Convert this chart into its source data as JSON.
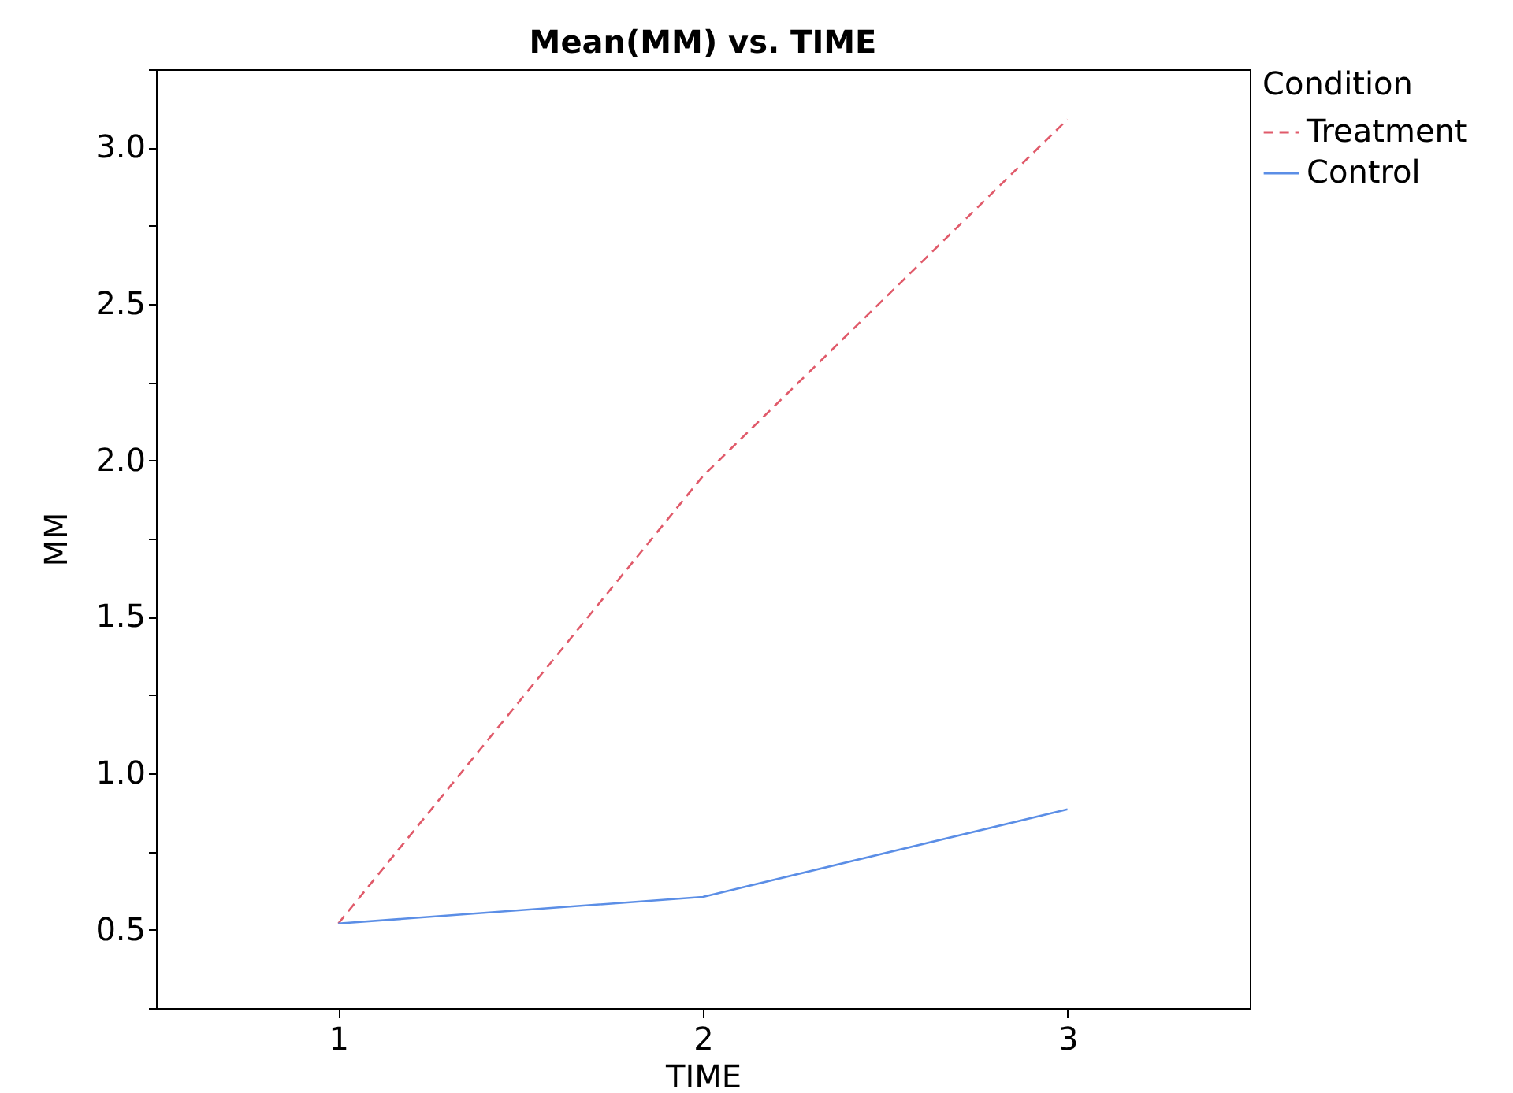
{
  "chart_data": {
    "type": "line",
    "title": "Mean(MM) vs. TIME",
    "xlabel": "TIME",
    "ylabel": "MM",
    "legend_title": "Condition",
    "legend": "top right",
    "x": [
      1,
      2,
      3
    ],
    "series": [
      {
        "name": "Treatment",
        "color": "#e05a6a",
        "line_style": "dashed",
        "values": [
          0.52,
          1.95,
          3.09
        ]
      },
      {
        "name": "Control",
        "color": "#5b8ee6",
        "line_style": "solid",
        "values": [
          0.52,
          0.605,
          0.885
        ]
      }
    ],
    "xlim": [
      0.5,
      3.5
    ],
    "xticks": [
      1,
      2,
      3
    ],
    "ylim": [
      0.25,
      3.25
    ],
    "yticks": [
      {
        "value": 0.25,
        "label": null
      },
      {
        "value": 0.5,
        "label": "0.5"
      },
      {
        "value": 0.75,
        "label": null
      },
      {
        "value": 1,
        "label": "1.0"
      },
      {
        "value": 1.25,
        "label": null
      },
      {
        "value": 1.5,
        "label": "1.5"
      },
      {
        "value": 1.75,
        "label": null
      },
      {
        "value": 2,
        "label": "2.0"
      },
      {
        "value": 2.25,
        "label": null
      },
      {
        "value": 2.5,
        "label": "2.5"
      },
      {
        "value": 2.75,
        "label": null
      },
      {
        "value": 3,
        "label": "3.0"
      },
      {
        "value": 3.25,
        "label": null
      }
    ],
    "grid": false,
    "marker": "none"
  }
}
